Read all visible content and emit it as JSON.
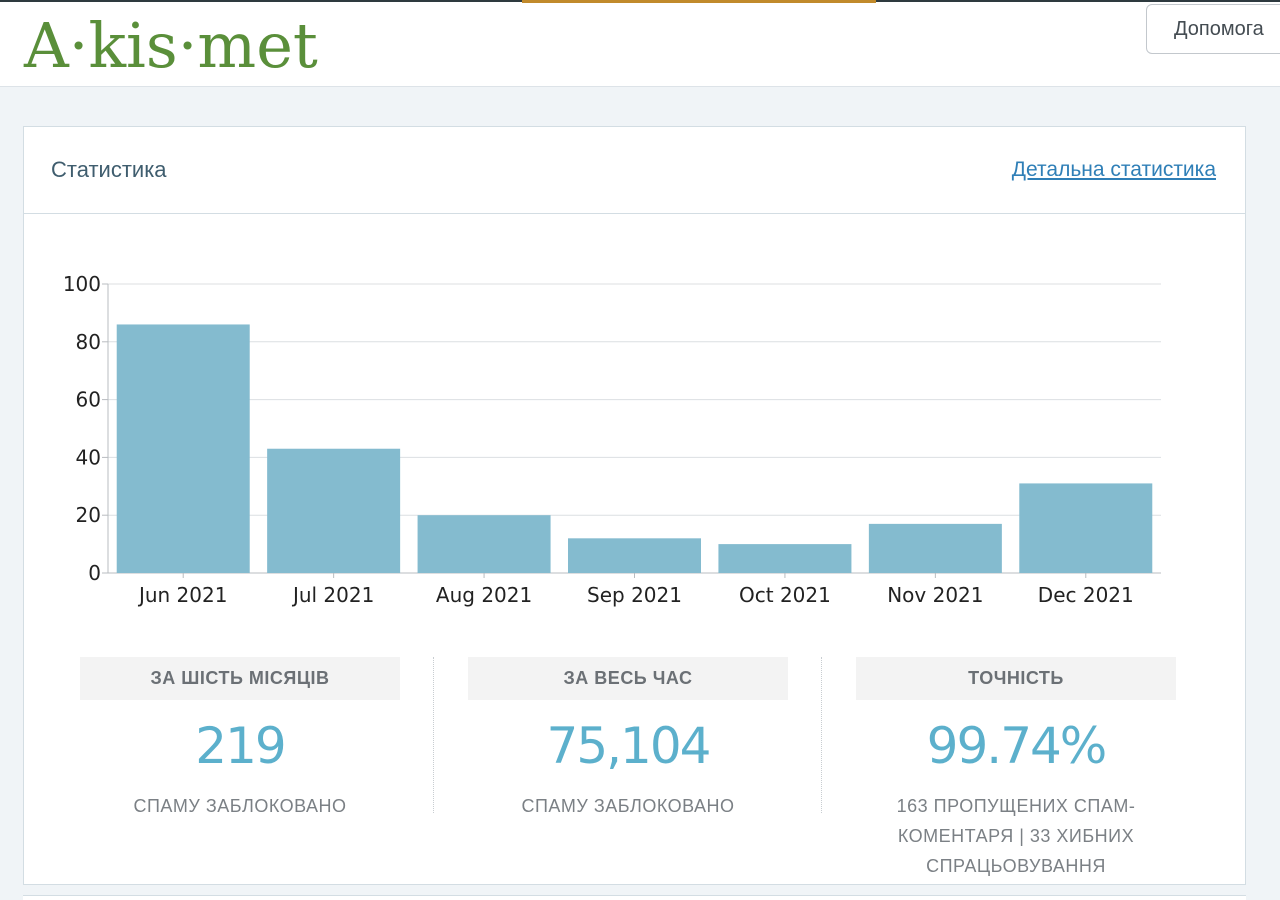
{
  "header": {
    "logo": "A·kis·met",
    "help_button": "Допомога"
  },
  "card": {
    "title": "Статистика",
    "detail_link": "Детальна статистика"
  },
  "chart_data": {
    "type": "bar",
    "categories": [
      "Jun 2021",
      "Jul 2021",
      "Aug 2021",
      "Sep 2021",
      "Oct 2021",
      "Nov 2021",
      "Dec 2021"
    ],
    "values": [
      86,
      43,
      20,
      12,
      10,
      17,
      31
    ],
    "ylim": [
      0,
      100
    ],
    "yticks": [
      0,
      20,
      40,
      60,
      80,
      100
    ],
    "grid": true,
    "bar_color": "#84bbcf"
  },
  "stats": [
    {
      "label": "ЗА ШІСТЬ МІСЯЦІВ",
      "value": "219",
      "sub": "СПАМУ ЗАБЛОКОВАНО"
    },
    {
      "label": "ЗА ВЕСЬ ЧАС",
      "value": "75,104",
      "sub": "СПАМУ ЗАБЛОКОВАНО"
    },
    {
      "label": "ТОЧНІСТЬ",
      "value": "99.74%",
      "sub": "163 ПРОПУЩЕНИХ СПАМ-КОМЕНТАРЯ | 33 ХИБНИХ СПРАЦЬОВУВАННЯ"
    }
  ],
  "colors": {
    "logo": "#5a8f3a",
    "link": "#2f7fb7",
    "stat_value": "#5cb0cc"
  }
}
